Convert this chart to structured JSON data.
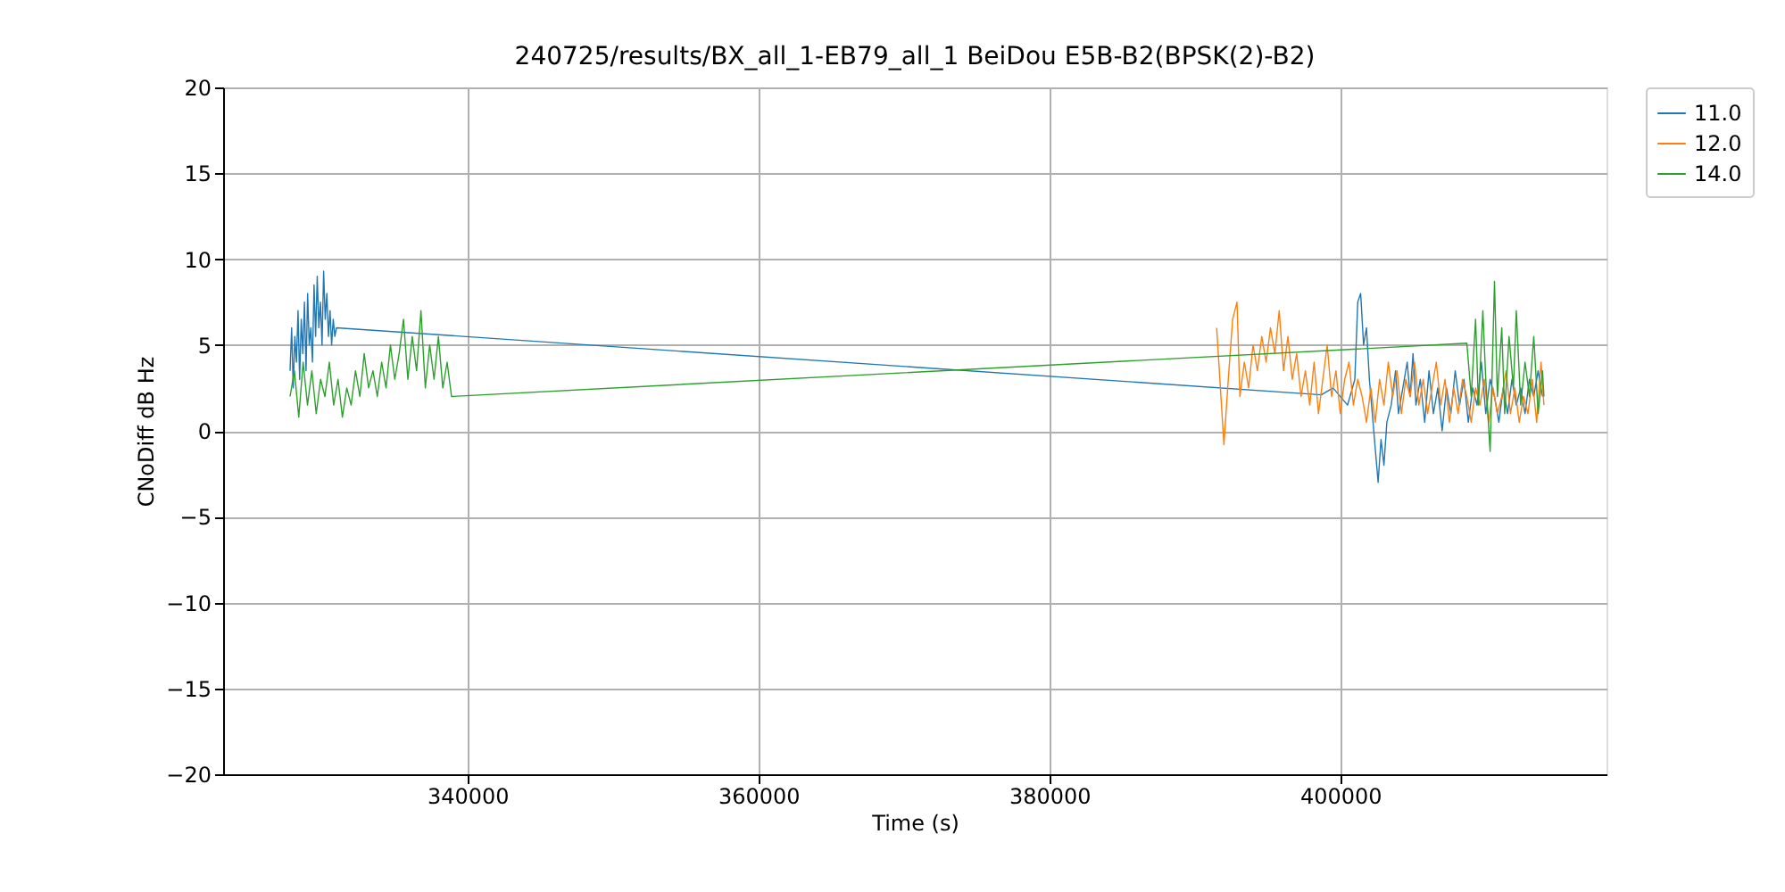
{
  "chart_data": {
    "type": "line",
    "title": "240725/results/BX_all_1-EB79_all_1 BeiDou E5B-B2(BPSK(2)-B2)",
    "xlabel": "Time (s)",
    "ylabel": "CNoDiff dB Hz",
    "xlim": [
      323200,
      418300
    ],
    "xticks": [
      340000,
      360000,
      380000,
      400000
    ],
    "ylim": [
      -20,
      20
    ],
    "yticks": [
      -20,
      -15,
      -10,
      -5,
      0,
      5,
      10,
      15,
      20
    ],
    "grid": true,
    "legend": "top right",
    "line_style": "solid",
    "marker": "none",
    "series": [
      {
        "name": "11.0",
        "color": "#1f77b4",
        "x": [
          327800,
          327910,
          328020,
          328130,
          328240,
          328350,
          328460,
          328570,
          328680,
          328790,
          328900,
          329010,
          329120,
          329230,
          329340,
          329450,
          329560,
          329670,
          329780,
          329890,
          330000,
          330110,
          330220,
          330330,
          330440,
          330550,
          330660,
          330770,
          330880,
          330990,
          398700,
          399500,
          400500,
          401000,
          401200,
          401400,
          401600,
          401800,
          402000,
          402200,
          402400,
          402600,
          402800,
          403000,
          403200,
          403500,
          403800,
          404000,
          404300,
          404600,
          404800,
          405000,
          405200,
          405500,
          405800,
          406100,
          406400,
          406700,
          407000,
          407300,
          407600,
          407900,
          408200,
          408500,
          408800,
          409100,
          409400,
          409700,
          410000,
          410300,
          410600,
          410900,
          411200,
          411500,
          411800,
          412100,
          412400,
          412700,
          413000,
          413300,
          413600,
          413900
        ],
        "values": [
          3.5,
          6,
          2.5,
          5.5,
          4,
          7,
          3,
          6.5,
          4.5,
          7.5,
          3.5,
          8,
          5,
          6,
          4,
          8.5,
          5.5,
          9,
          6,
          7.5,
          5,
          9.3,
          6.5,
          8,
          5.5,
          7,
          5,
          6.5,
          5.5,
          6,
          2.1,
          2.5,
          1.5,
          3,
          7.5,
          8,
          5,
          6,
          3,
          1,
          -1,
          -3,
          -0.5,
          -2,
          0.5,
          1.5,
          3.5,
          1,
          2.5,
          4,
          2,
          4.5,
          1.5,
          3,
          0.5,
          3.5,
          1,
          2.5,
          0,
          2.5,
          1,
          3.5,
          1.5,
          3,
          0.5,
          2.5,
          1.5,
          4,
          1,
          3,
          2,
          0.5,
          2.5,
          1,
          3,
          1.5,
          2.5,
          1,
          3,
          2,
          3.5,
          2
        ]
      },
      {
        "name": "12.0",
        "color": "#ff7f0e",
        "x": [
          391500,
          392000,
          392300,
          392600,
          392900,
          393100,
          393400,
          393700,
          394000,
          394300,
          394600,
          394900,
          395200,
          395500,
          395800,
          396100,
          396400,
          396700,
          397000,
          397300,
          397600,
          397900,
          398200,
          398500,
          398800,
          399100,
          399400,
          399700,
          400000,
          400300,
          400600,
          400900,
          401200,
          401500,
          401800,
          402100,
          402400,
          402700,
          403000,
          403300,
          403600,
          403900,
          404200,
          404500,
          404800,
          405100,
          405400,
          405700,
          406000,
          406300,
          406600,
          406900,
          407200,
          407500,
          407800,
          408100,
          408400,
          408700,
          409000,
          409300,
          409600,
          409900,
          410200,
          410500,
          410800,
          411100,
          411400,
          411700,
          412000,
          412300,
          412600,
          412900,
          413200,
          413500,
          413800,
          414000
        ],
        "values": [
          6,
          -0.8,
          3,
          6.5,
          7.5,
          2,
          4,
          2.5,
          5,
          3.5,
          5.5,
          4,
          6,
          4.5,
          7,
          3.5,
          5.5,
          3,
          4.5,
          2,
          3.5,
          1.5,
          4,
          1,
          3,
          5,
          2,
          3.5,
          1,
          3,
          4,
          1.5,
          3,
          2,
          0.5,
          2.5,
          0.5,
          3,
          1.5,
          4,
          2,
          3.5,
          1,
          3,
          2,
          4,
          1.5,
          3,
          1,
          2.5,
          4,
          1.5,
          3,
          0.5,
          2.5,
          1,
          3,
          2,
          0.5,
          2.5,
          1.5,
          3,
          0.5,
          2.5,
          1,
          2,
          3.5,
          1,
          2.5,
          0.5,
          2,
          1,
          3,
          0.5,
          4,
          1.5
        ]
      },
      {
        "name": "14.0",
        "color": "#2ca02c",
        "x": [
          327800,
          328100,
          328400,
          328700,
          329000,
          329300,
          329600,
          329900,
          330200,
          330500,
          330800,
          331100,
          331400,
          331700,
          332000,
          332300,
          332600,
          332900,
          333200,
          333500,
          333800,
          334100,
          334400,
          334700,
          335000,
          335300,
          335600,
          335900,
          336200,
          336500,
          336800,
          337100,
          337400,
          337700,
          338000,
          338300,
          338600,
          338900,
          408700,
          409000,
          409300,
          409500,
          409800,
          410000,
          410300,
          410600,
          410800,
          411100,
          411300,
          411600,
          411900,
          412100,
          412400,
          412700,
          413000,
          413300,
          413600,
          413900,
          414000
        ],
        "values": [
          2,
          3.5,
          0.8,
          4,
          1.5,
          3.5,
          1,
          3,
          2,
          4,
          1.5,
          3,
          0.8,
          2.5,
          1.5,
          3.5,
          2,
          4.5,
          2.5,
          3.5,
          2,
          4,
          2.5,
          5,
          3,
          4.5,
          6.5,
          3,
          5.5,
          3.5,
          7,
          2.5,
          5,
          3,
          5.5,
          2.5,
          4,
          2,
          5.1,
          2,
          6.5,
          1.5,
          7,
          3,
          -1.2,
          8.7,
          2,
          6,
          1,
          5.5,
          2.5,
          7,
          1.5,
          4,
          2,
          5.5,
          1,
          3.5,
          2
        ]
      }
    ]
  }
}
